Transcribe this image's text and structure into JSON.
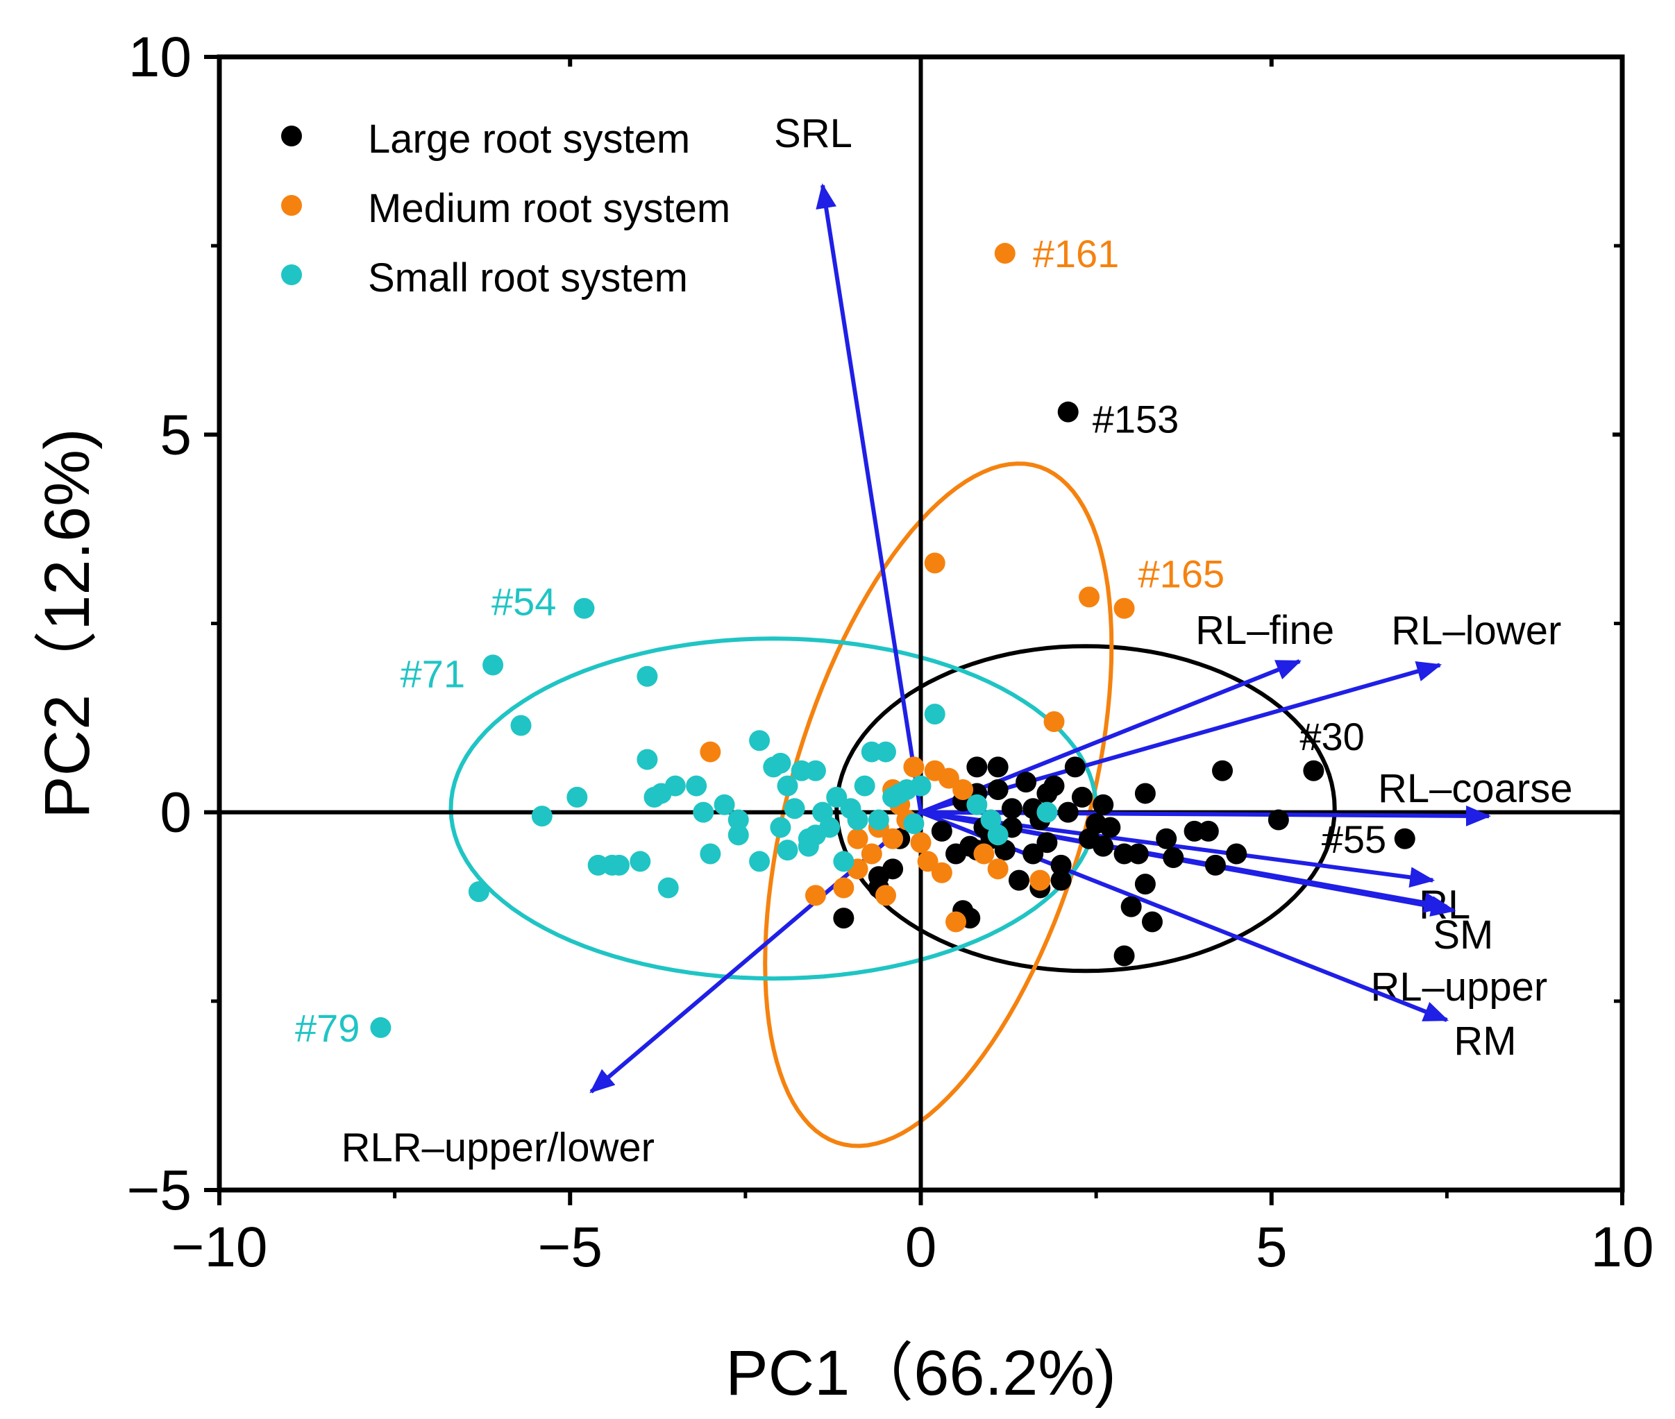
{
  "chart_data": {
    "type": "scatter",
    "title": "",
    "xlabel": "PC1（66.2%)",
    "ylabel": "PC2（12.6%)",
    "xlim": [
      -10,
      10
    ],
    "ylim": [
      -5,
      10
    ],
    "x_ticks": [
      -10,
      -5,
      0,
      5,
      10
    ],
    "y_ticks": [
      -5,
      0,
      5,
      10
    ],
    "x_tick_labels": [
      "−10",
      "−5",
      "0",
      "5",
      "10"
    ],
    "y_tick_labels": [
      "−5",
      "0",
      "5",
      "10"
    ],
    "zero_lines": true,
    "grid": false,
    "legend_position": "top-left",
    "series": [
      {
        "name": "Large root system",
        "color": "#000000",
        "points": [
          [
            2.1,
            5.3
          ],
          [
            5.6,
            0.55
          ],
          [
            6.9,
            -0.35
          ],
          [
            5.1,
            -0.1
          ],
          [
            4.3,
            0.55
          ],
          [
            4.1,
            -0.25
          ],
          [
            4.2,
            -0.7
          ],
          [
            4.5,
            -0.55
          ],
          [
            3.9,
            -0.25
          ],
          [
            3.2,
            0.25
          ],
          [
            3.3,
            -1.45
          ],
          [
            2.9,
            -1.9
          ],
          [
            3.0,
            -1.25
          ],
          [
            3.1,
            -0.55
          ],
          [
            3.6,
            -0.6
          ],
          [
            3.2,
            -0.95
          ],
          [
            2.7,
            -0.2
          ],
          [
            2.6,
            0.1
          ],
          [
            2.4,
            -0.35
          ],
          [
            2.2,
            0.6
          ],
          [
            2.0,
            -0.7
          ],
          [
            1.7,
            -0.1
          ],
          [
            1.8,
            0.25
          ],
          [
            1.6,
            -0.55
          ],
          [
            1.5,
            0.4
          ],
          [
            1.3,
            -0.2
          ],
          [
            1.1,
            0.3
          ],
          [
            0.8,
            0.25
          ],
          [
            0.7,
            -0.45
          ],
          [
            0.6,
            0.15
          ],
          [
            0.5,
            -0.55
          ],
          [
            0.8,
            0.6
          ],
          [
            1.1,
            0.6
          ],
          [
            1.2,
            -0.5
          ],
          [
            1.4,
            -0.9
          ],
          [
            1.7,
            -1.0
          ],
          [
            2.0,
            -0.9
          ],
          [
            0.8,
            -0.5
          ],
          [
            0.7,
            -1.4
          ],
          [
            0.6,
            -1.3
          ],
          [
            -0.3,
            -0.35
          ],
          [
            -0.6,
            -1.0
          ],
          [
            -0.4,
            -0.75
          ],
          [
            -0.6,
            -0.85
          ],
          [
            0.3,
            -0.25
          ],
          [
            0.9,
            -0.2
          ],
          [
            1.9,
            0.35
          ],
          [
            2.3,
            0.2
          ],
          [
            2.6,
            -0.45
          ],
          [
            3.5,
            -0.35
          ],
          [
            2.9,
            -0.55
          ],
          [
            1.6,
            0.05
          ],
          [
            2.1,
            0.0
          ],
          [
            1.3,
            0.05
          ],
          [
            1.0,
            -0.35
          ],
          [
            -1.1,
            -1.4
          ],
          [
            1.8,
            -0.4
          ],
          [
            2.5,
            -0.15
          ]
        ]
      },
      {
        "name": "Medium root system",
        "color": "#f5820f",
        "points": [
          [
            1.2,
            7.4
          ],
          [
            2.9,
            2.7
          ],
          [
            2.4,
            2.85
          ],
          [
            0.2,
            3.3
          ],
          [
            1.9,
            1.2
          ],
          [
            -3.0,
            0.8
          ],
          [
            0.2,
            0.55
          ],
          [
            0.4,
            0.45
          ],
          [
            -0.1,
            0.6
          ],
          [
            -0.4,
            0.3
          ],
          [
            -0.2,
            -0.1
          ],
          [
            -0.4,
            -0.35
          ],
          [
            -0.7,
            -0.55
          ],
          [
            0.1,
            -0.65
          ],
          [
            0.3,
            -0.8
          ],
          [
            -0.9,
            -0.75
          ],
          [
            -1.1,
            -1.0
          ],
          [
            -0.5,
            -1.1
          ],
          [
            0.5,
            -1.45
          ],
          [
            -1.5,
            -1.1
          ],
          [
            -0.9,
            -0.35
          ],
          [
            0.6,
            0.3
          ],
          [
            1.1,
            -0.75
          ],
          [
            1.7,
            -0.9
          ],
          [
            0.9,
            -0.55
          ],
          [
            -0.3,
            0.1
          ],
          [
            0.0,
            -0.4
          ],
          [
            -0.6,
            -0.2
          ]
        ]
      },
      {
        "name": "Small root system",
        "color": "#20c4c4",
        "points": [
          [
            -4.8,
            2.7
          ],
          [
            -6.1,
            1.95
          ],
          [
            -5.7,
            1.15
          ],
          [
            -3.9,
            1.8
          ],
          [
            -7.7,
            -2.85
          ],
          [
            -6.3,
            -1.05
          ],
          [
            -5.4,
            -0.05
          ],
          [
            -4.9,
            0.2
          ],
          [
            -4.4,
            -0.7
          ],
          [
            -4.6,
            -0.7
          ],
          [
            -4.3,
            -0.7
          ],
          [
            -4.0,
            -0.65
          ],
          [
            -3.9,
            0.7
          ],
          [
            -3.8,
            0.2
          ],
          [
            -3.7,
            0.25
          ],
          [
            -3.5,
            0.35
          ],
          [
            -3.2,
            0.35
          ],
          [
            -3.6,
            -1.0
          ],
          [
            -3.1,
            0.0
          ],
          [
            -3.0,
            -0.55
          ],
          [
            -2.8,
            0.1
          ],
          [
            -2.6,
            -0.3
          ],
          [
            -2.3,
            0.95
          ],
          [
            -2.1,
            0.6
          ],
          [
            -2.0,
            0.65
          ],
          [
            -1.9,
            0.35
          ],
          [
            -1.8,
            0.05
          ],
          [
            -1.6,
            -0.35
          ],
          [
            -1.5,
            -0.3
          ],
          [
            -1.7,
            0.55
          ],
          [
            -1.5,
            0.55
          ],
          [
            -1.2,
            0.2
          ],
          [
            -1.0,
            0.05
          ],
          [
            -0.8,
            0.35
          ],
          [
            -0.7,
            0.8
          ],
          [
            -0.5,
            0.8
          ],
          [
            -0.4,
            0.2
          ],
          [
            -0.2,
            0.3
          ],
          [
            0.2,
            1.3
          ],
          [
            0.0,
            0.35
          ],
          [
            -2.3,
            -0.65
          ],
          [
            -1.9,
            -0.5
          ],
          [
            -1.6,
            -0.45
          ],
          [
            -1.3,
            -0.2
          ],
          [
            -0.9,
            -0.1
          ],
          [
            -0.6,
            -0.1
          ],
          [
            -2.6,
            -0.1
          ],
          [
            -2.0,
            -0.2
          ],
          [
            -1.1,
            -0.65
          ],
          [
            1.8,
            0.0
          ],
          [
            1.1,
            -0.3
          ],
          [
            0.8,
            0.1
          ],
          [
            1.0,
            -0.1
          ],
          [
            -0.3,
            0.25
          ],
          [
            -0.1,
            -0.15
          ],
          [
            -1.4,
            0.0
          ]
        ]
      }
    ],
    "point_labels": [
      {
        "text": "#161",
        "x": 1.2,
        "y": 7.4,
        "color": "#f5820f"
      },
      {
        "text": "#153",
        "x": 2.1,
        "y": 5.3,
        "color": "#000000"
      },
      {
        "text": "#165",
        "x": 2.9,
        "y": 2.7,
        "color": "#f5820f"
      },
      {
        "text": "#54",
        "x": -4.8,
        "y": 2.7,
        "color": "#20c4c4"
      },
      {
        "text": "#71",
        "x": -6.1,
        "y": 1.95,
        "color": "#20c4c4"
      },
      {
        "text": "#30",
        "x": 5.6,
        "y": 0.55,
        "color": "#000000"
      },
      {
        "text": "#55",
        "x": 6.9,
        "y": -0.35,
        "color": "#000000"
      },
      {
        "text": "#79",
        "x": -7.7,
        "y": -2.85,
        "color": "#20c4c4"
      }
    ],
    "loadings": [
      {
        "label": "SRL",
        "x": -1.4,
        "y": 8.3
      },
      {
        "label": "RL–fine",
        "x": 5.4,
        "y": 2.0
      },
      {
        "label": "RL–lower",
        "x": 7.4,
        "y": 1.95
      },
      {
        "label": "RL–coarse",
        "x": 8.1,
        "y": -0.05
      },
      {
        "label": "RL",
        "x": 7.3,
        "y": -0.9
      },
      {
        "label": "SM",
        "x": 7.5,
        "y": -1.25
      },
      {
        "label": "RL–upper",
        "x": 7.6,
        "y": -1.3
      },
      {
        "label": "RM",
        "x": 7.5,
        "y": -2.75
      },
      {
        "label": "RLR–upper/lower",
        "x": -4.7,
        "y": -3.7
      }
    ],
    "loading_color": "#1f1fe6",
    "ellipses": [
      {
        "group": "Large root system",
        "color": "#000000",
        "cx": 2.35,
        "cy": 0.05,
        "rx": 3.55,
        "ry": 2.15,
        "angle_deg": 0
      },
      {
        "group": "Medium root system",
        "color": "#f5820f",
        "cx": 0.25,
        "cy": 0.1,
        "rx": 4.7,
        "ry": 2.1,
        "angle_deg": 72
      },
      {
        "group": "Small root system",
        "color": "#20c4c4",
        "cx": -2.1,
        "cy": 0.05,
        "rx": 4.6,
        "ry": 2.25,
        "angle_deg": 0
      }
    ]
  }
}
